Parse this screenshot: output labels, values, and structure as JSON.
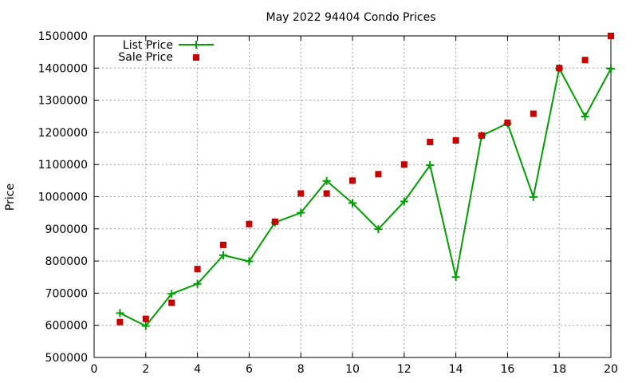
{
  "chart_data": {
    "type": "line",
    "title": "May 2022 94404 Condo Prices",
    "xlabel": "",
    "ylabel": "Price",
    "xlim": [
      0,
      20
    ],
    "ylim": [
      500000,
      1500000
    ],
    "x_ticks": [
      0,
      2,
      4,
      6,
      8,
      10,
      12,
      14,
      16,
      18,
      20
    ],
    "y_ticks": [
      500000,
      600000,
      700000,
      800000,
      900000,
      1000000,
      1100000,
      1200000,
      1300000,
      1400000,
      1500000
    ],
    "grid": true,
    "legend_position": "top-left",
    "x": [
      1,
      2,
      3,
      4,
      5,
      6,
      7,
      8,
      9,
      10,
      11,
      12,
      13,
      14,
      15,
      16,
      17,
      18,
      19,
      20
    ],
    "series": [
      {
        "name": "List Price",
        "style": "lines+cross-markers",
        "color": "#009e00",
        "values": [
          638000,
          598000,
          698000,
          729000,
          818000,
          799000,
          920000,
          950000,
          1049000,
          980000,
          899000,
          985000,
          1098000,
          750000,
          1190000,
          1228000,
          999000,
          1399000,
          1249000,
          1398000
        ]
      },
      {
        "name": "Sale Price",
        "style": "square-markers",
        "color": "#c80000",
        "values": [
          610000,
          620000,
          670000,
          775000,
          850000,
          915000,
          922000,
          1010000,
          1010000,
          1050000,
          1070000,
          1100000,
          1170000,
          1175000,
          1190000,
          1230000,
          1258000,
          1400000,
          1425000,
          1500000
        ]
      }
    ]
  }
}
